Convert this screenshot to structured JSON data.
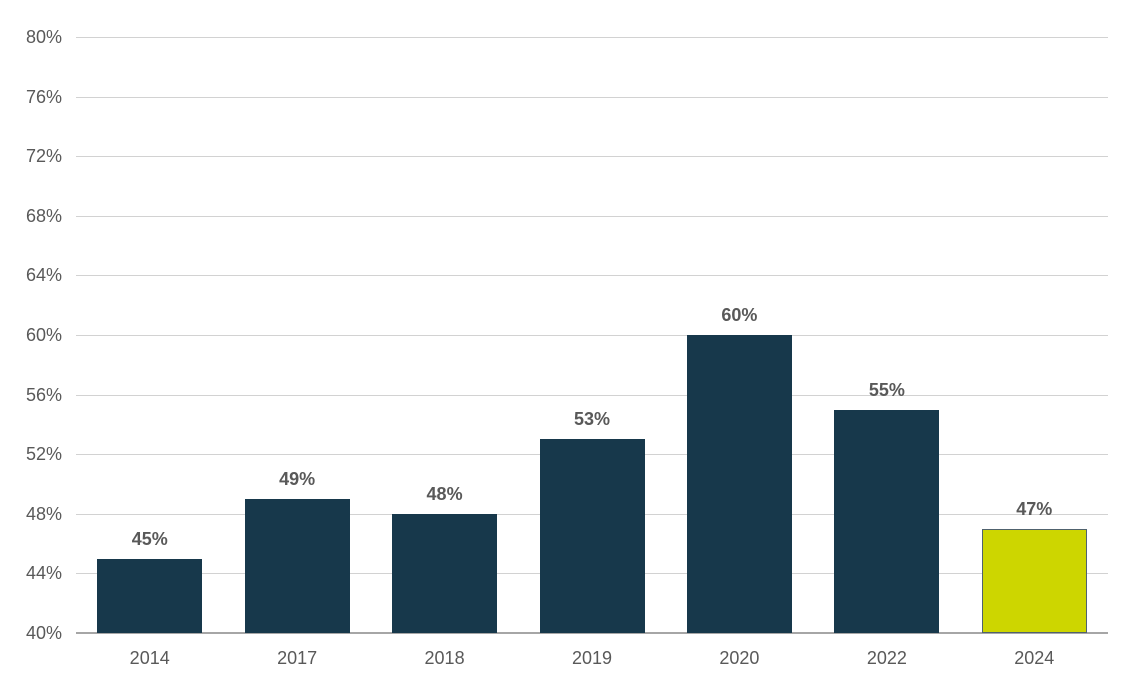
{
  "chart_data": {
    "type": "bar",
    "title": "",
    "xlabel": "",
    "ylabel": "",
    "categories": [
      "2014",
      "2017",
      "2018",
      "2019",
      "2020",
      "2022",
      "2024"
    ],
    "values": [
      45,
      49,
      48,
      53,
      60,
      55,
      47
    ],
    "data_labels": [
      "45%",
      "49%",
      "48%",
      "53%",
      "60%",
      "55%",
      "47%"
    ],
    "ylim": [
      40,
      80
    ],
    "ytick_step": 4,
    "ytick_labels": [
      "40%",
      "44%",
      "48%",
      "52%",
      "56%",
      "60%",
      "64%",
      "68%",
      "72%",
      "76%",
      "80%"
    ],
    "grid": true,
    "legend": false,
    "highlight_category": "2024",
    "colors": {
      "bar": "#17384B",
      "highlight_bar": "#CDD600",
      "highlight_bar_border": "#50626E",
      "gridline": "#D2D2D2",
      "axis_line": "#A6A6A6",
      "tick_text": "#595959",
      "data_label_text": "#595959",
      "background": "#FFFFFF"
    }
  }
}
